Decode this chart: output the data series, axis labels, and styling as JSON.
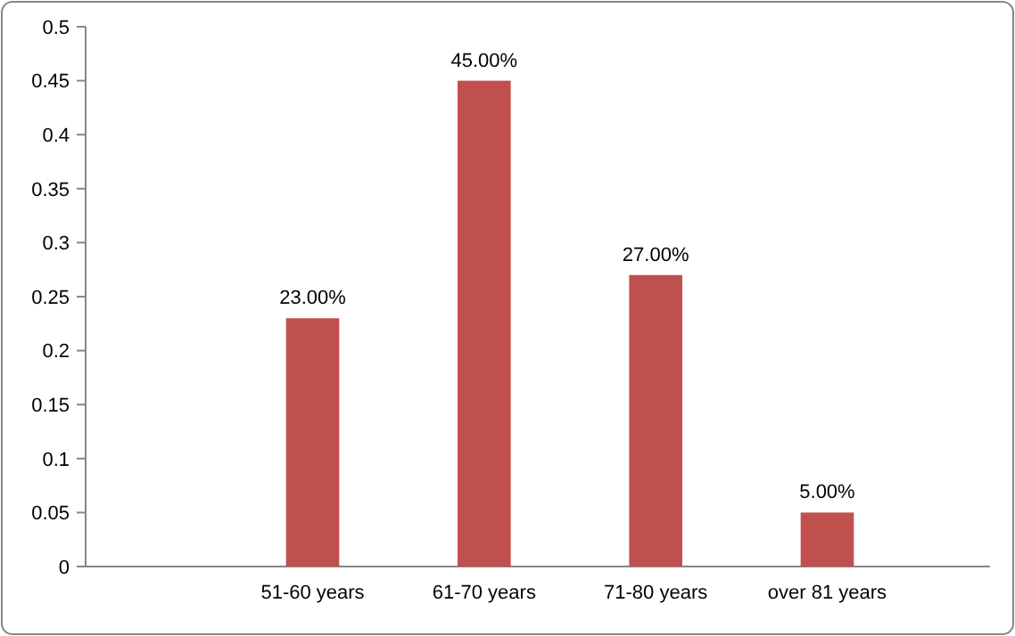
{
  "chart_data": {
    "type": "bar",
    "categories": [
      "51-60 years",
      "61-70 years",
      "71-80 years",
      "over 81 years"
    ],
    "values": [
      0.23,
      0.45,
      0.27,
      0.05
    ],
    "value_labels": [
      "23.00%",
      "45.00%",
      "27.00%",
      "5.00%"
    ],
    "color": "#c0504d",
    "ylim": [
      0,
      0.5
    ],
    "yticks": [
      0,
      0.05,
      0.1,
      0.15,
      0.2,
      0.25,
      0.3,
      0.35,
      0.4,
      0.45,
      0.5
    ],
    "grid": false
  }
}
